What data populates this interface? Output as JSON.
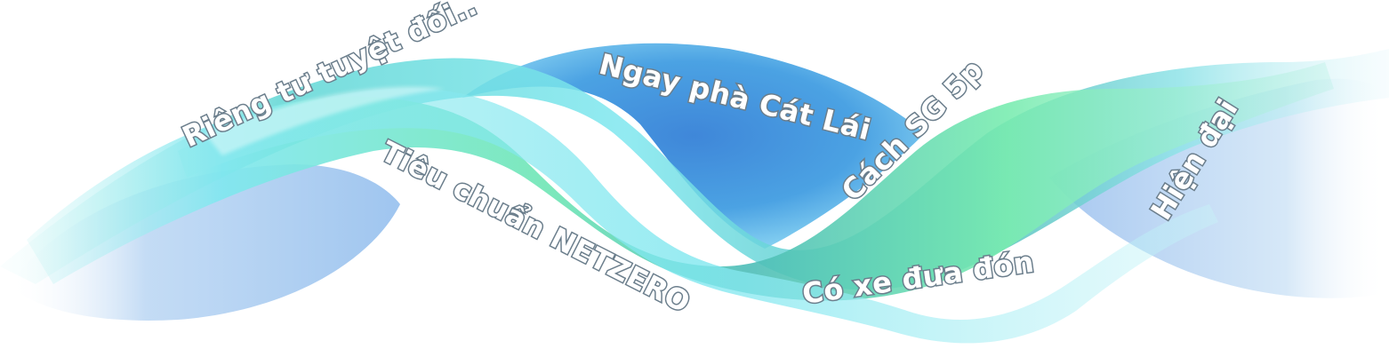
{
  "labels": {
    "rieng_tu": "Riêng tư tuyệt đối..",
    "ngay_pha": "Ngay phà Cát Lái",
    "tieu_chuan": "Tiêu chuẩn NETZERO",
    "cach_sg": "Cách SG 5p",
    "hien_dai": "Hiện đại",
    "co_xe": "Có xe đưa đón"
  },
  "colors": {
    "background": "#ffffff",
    "label_fill": "#ffffff",
    "label_outline": "#6b7e8c",
    "blue_deep": "#3f87d9",
    "blue_light": "#8fd8f4",
    "green_mint": "#79ecb0",
    "teal": "#4dbdb8",
    "cyan": "#7fe7ef"
  }
}
